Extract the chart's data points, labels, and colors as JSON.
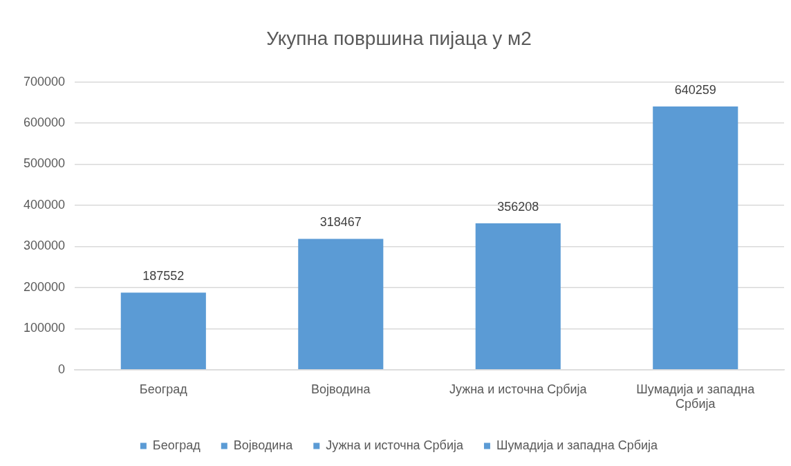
{
  "chart_data": {
    "type": "bar",
    "title": "Укупна површина пијаца у м2",
    "categories": [
      "Београд",
      "Војводина",
      "Јужна и источна Србија",
      "Шумадија и западна Србија"
    ],
    "series": [
      {
        "name": "Београд",
        "color": "#5b9bd5",
        "values": [
          187552,
          null,
          null,
          null
        ]
      },
      {
        "name": "Војводина",
        "color": "#5b9bd5",
        "values": [
          null,
          318467,
          null,
          null
        ]
      },
      {
        "name": "Јужна и источна Србија",
        "color": "#5b9bd5",
        "values": [
          null,
          null,
          356208,
          null
        ]
      },
      {
        "name": "Шумадија и западна Србија",
        "color": "#5b9bd5",
        "values": [
          null,
          null,
          null,
          640259
        ]
      }
    ],
    "stacked": true,
    "ylim": [
      0,
      700000
    ],
    "yticks": [
      0,
      100000,
      200000,
      300000,
      400000,
      500000,
      600000,
      700000
    ],
    "grid": "y",
    "legend": "bottom",
    "data_labels": true
  }
}
